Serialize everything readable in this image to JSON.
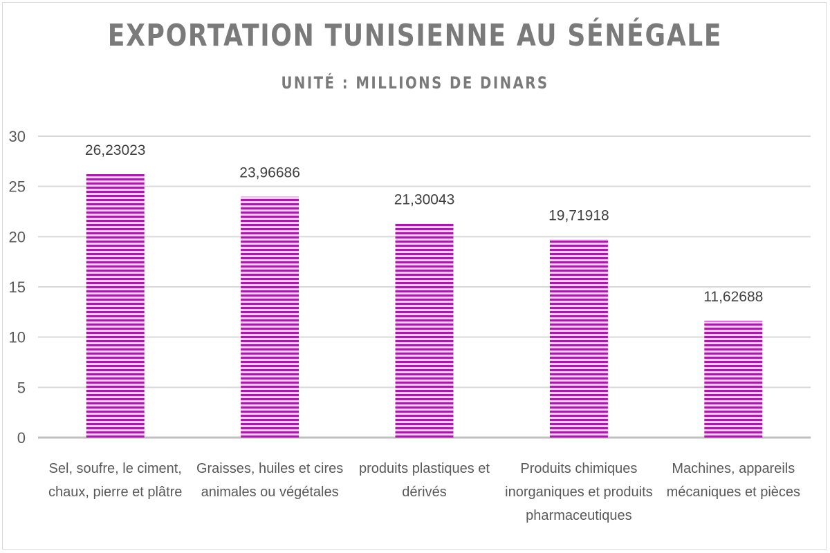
{
  "chart_data": {
    "type": "bar",
    "title": "EXPORTATION TUNISIENNE AU SÉNÉGALE",
    "subtitle": "UNITÉ : MILLIONS DE DINARS",
    "categories": [
      [
        "Sel, soufre, le ciment,",
        "chaux, pierre et plâtre"
      ],
      [
        "Graisses, huiles et cires",
        "animales ou végétales"
      ],
      [
        "produits plastiques et",
        "dérivés"
      ],
      [
        "Produits chimiques",
        "inorganiques et produits",
        "pharmaceutiques"
      ],
      [
        "Machines, appareils",
        "mécaniques et pièces"
      ]
    ],
    "values": [
      26.23023,
      23.96686,
      21.30043,
      19.71918,
      11.62688
    ],
    "data_labels": [
      "26,23023",
      "23,96686",
      "21,30043",
      "19,71918",
      "11,62688"
    ],
    "ylim": [
      0,
      30
    ],
    "yticks": [
      0,
      5,
      10,
      15,
      20,
      25,
      30
    ],
    "grid": true,
    "legend": "none",
    "colors": {
      "bar": "#a0209f",
      "bar_light": "#f5c9f3",
      "grid": "#d9d9d9",
      "axis": "#bfbfbf",
      "text": "#595959",
      "title": "#7a7a7a"
    }
  }
}
